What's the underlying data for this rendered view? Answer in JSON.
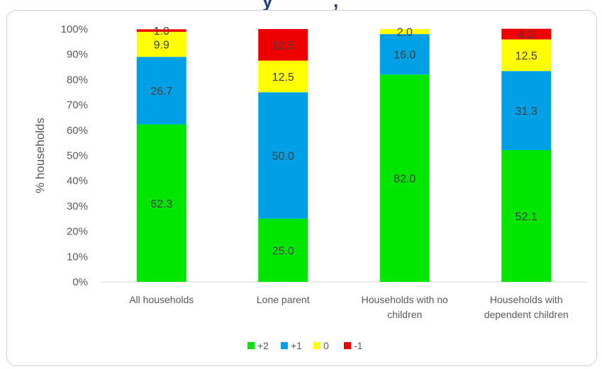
{
  "chart_data": {
    "type": "bar",
    "stacked": "percent",
    "ylabel": "% households",
    "ylim": [
      0,
      100
    ],
    "yticks": [
      "0%",
      "10%",
      "20%",
      "30%",
      "40%",
      "50%",
      "60%",
      "70%",
      "80%",
      "90%",
      "100%"
    ],
    "categories": [
      [
        "All  households"
      ],
      [
        "Lone parent"
      ],
      [
        "Households with no",
        "children"
      ],
      [
        "Households with",
        "dependent children"
      ]
    ],
    "series": [
      {
        "name": "+2",
        "color": "#00e600",
        "values": [
          62.3,
          25.0,
          82.0,
          52.1
        ],
        "labels": [
          "62.3",
          "25.0",
          "82.0",
          "52.1"
        ]
      },
      {
        "name": "+1",
        "color": "#00a0e6",
        "values": [
          26.7,
          50.0,
          16.0,
          31.3
        ],
        "labels": [
          "26.7",
          "50.0",
          "16.0",
          "31.3"
        ]
      },
      {
        "name": "0",
        "color": "#ffff00",
        "values": [
          9.9,
          12.5,
          2.0,
          12.5
        ],
        "labels": [
          "9.9",
          "12.5",
          "2.0",
          "12.5"
        ]
      },
      {
        "name": "-1",
        "color": "#ee0000",
        "values": [
          1.0,
          12.5,
          0.0,
          4.2
        ],
        "labels": [
          "1.0",
          "12.5",
          "",
          "4.2"
        ]
      }
    ],
    "grid": false,
    "legend_position": "bottom"
  }
}
